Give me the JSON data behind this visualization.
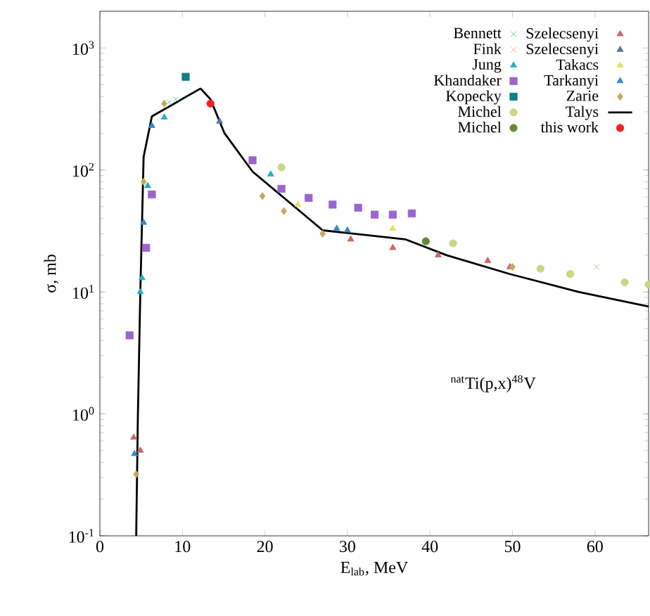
{
  "chart_data": {
    "type": "scatter",
    "xlabel": "E$_{lab}$, MeV",
    "ylabel": "σ, mb",
    "annotations": [
      "$^{nat}$Ti(p,x)$^{48}$V"
    ],
    "xlim": [
      0,
      66.5
    ],
    "xticks": [
      0,
      10,
      20,
      30,
      40,
      50,
      60
    ],
    "ylim": [
      0.1,
      2000
    ],
    "log": "y",
    "yticks": [
      {
        "value": 0.1,
        "label": "10$^{-1}$"
      },
      {
        "value": 1,
        "label": "10$^{0}$"
      },
      {
        "value": 10,
        "label": "10$^{1}$"
      },
      {
        "value": 100,
        "label": "10$^{2}$"
      },
      {
        "value": 1000,
        "label": "10$^{3}$"
      }
    ],
    "grid": false,
    "legend": "top right",
    "series": [
      {
        "name": "Bennett",
        "color": "#33cc66",
        "marker": "cross",
        "x": [
          9.2,
          8.4
        ],
        "values": [
          380,
          360
        ]
      },
      {
        "name": "Fink",
        "color": "#e8a070",
        "marker": "cross",
        "x": [
          60.2
        ],
        "values": [
          16
        ]
      },
      {
        "name": "Jung",
        "color": "#20b0c0",
        "marker": "triangle",
        "x": [
          4.9,
          5.1,
          5.8,
          7.8,
          20.7
        ],
        "values": [
          10,
          13,
          74,
          270,
          92
        ]
      },
      {
        "name": "Khandaker",
        "color": "#9966cc",
        "marker": "square",
        "x": [
          3.6,
          5.6,
          6.3,
          18.5,
          22,
          25.3,
          28.2,
          31.3,
          33.3,
          35.5,
          37.8
        ],
        "values": [
          4.4,
          23,
          63,
          120,
          70,
          59,
          52,
          49,
          43,
          43,
          44
        ]
      },
      {
        "name": "Kopecky",
        "color": "#108080",
        "marker": "square",
        "x": [
          10.4
        ],
        "values": [
          580
        ]
      },
      {
        "name": "Michel",
        "color": "#c8d880",
        "marker": "circle",
        "x": [
          22,
          42.8,
          53.4,
          57,
          63.6,
          66.5
        ],
        "values": [
          105,
          25,
          15.5,
          14,
          12,
          11.5
        ]
      },
      {
        "name": "Michel",
        "color": "#668833",
        "marker": "circle",
        "x": [
          39.5
        ],
        "values": [
          26
        ]
      },
      {
        "name": "Szelecsenyi",
        "color": "#cc6666",
        "marker": "triangle",
        "x": [
          4.1,
          4.9,
          30.4,
          35.5,
          41,
          47,
          49.7
        ],
        "values": [
          0.64,
          0.5,
          27,
          23,
          20,
          18,
          16
        ]
      },
      {
        "name": "Szelecsenyi",
        "color": "#5577aa",
        "marker": "triangle",
        "x": [
          14.5
        ],
        "values": [
          250
        ]
      },
      {
        "name": "Takacs",
        "color": "#e8e060",
        "marker": "triangle",
        "x": [
          24,
          35.5
        ],
        "values": [
          52,
          33
        ]
      },
      {
        "name": "Tarkanyi",
        "color": "#3388cc",
        "marker": "triangle",
        "x": [
          4.2,
          5.3,
          6.3,
          28.7,
          30
        ],
        "values": [
          0.47,
          37,
          230,
          33,
          32
        ]
      },
      {
        "name": "Zarie",
        "color": "#c8a860",
        "marker": "diamond",
        "x": [
          4.4,
          5.3,
          7.8,
          19.7,
          22.3,
          27,
          50
        ],
        "values": [
          0.32,
          80,
          350,
          61,
          46,
          30,
          16
        ]
      },
      {
        "name": "Talys",
        "color": "#000000",
        "type": "line",
        "marker": "none",
        "line_style": "solid",
        "x": [
          4.4,
          4.6,
          4.9,
          5.3,
          6.3,
          12.2,
          13.4,
          15.1,
          18.5,
          27,
          37,
          42,
          49.7,
          58,
          66.5
        ],
        "values": [
          0.1,
          0.93,
          10,
          128,
          275,
          465,
          380,
          200,
          97,
          32,
          27,
          20,
          14,
          10,
          7.6
        ]
      },
      {
        "name": "this work",
        "color": "#ee2222",
        "marker": "circle",
        "x": [
          13.4
        ],
        "values": [
          350
        ]
      }
    ]
  }
}
